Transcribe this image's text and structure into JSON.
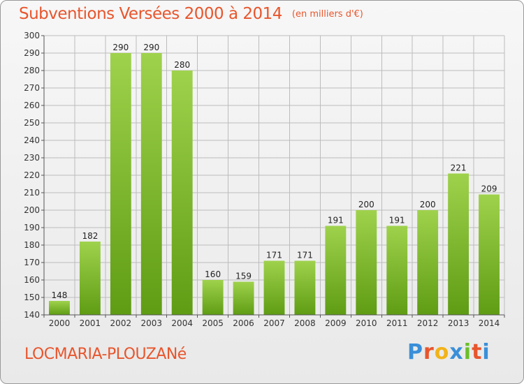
{
  "header": {
    "title": "Subventions Versées 2000 à 2014",
    "subtitle": "(en milliers d'€)"
  },
  "footer": {
    "commune": "LOCMARIA-PLOUZANé",
    "logo": "Proxiti"
  },
  "colors": {
    "title": "#e8552c",
    "bar_top": "#9fd24c",
    "bar_bottom": "#5f9c14",
    "grid": "#bcbcbc"
  },
  "chart_data": {
    "type": "bar",
    "categories": [
      "2000",
      "2001",
      "2002",
      "2003",
      "2004",
      "2005",
      "2006",
      "2007",
      "2008",
      "2009",
      "2010",
      "2011",
      "2012",
      "2013",
      "2014"
    ],
    "values": [
      148,
      182,
      290,
      290,
      280,
      160,
      159,
      171,
      171,
      191,
      200,
      191,
      200,
      221,
      209
    ],
    "title": "Subventions Versées 2000 à 2014",
    "subtitle": "(en milliers d'€)",
    "ylim": [
      140,
      300
    ],
    "ytick_step": 10,
    "grid": true
  }
}
